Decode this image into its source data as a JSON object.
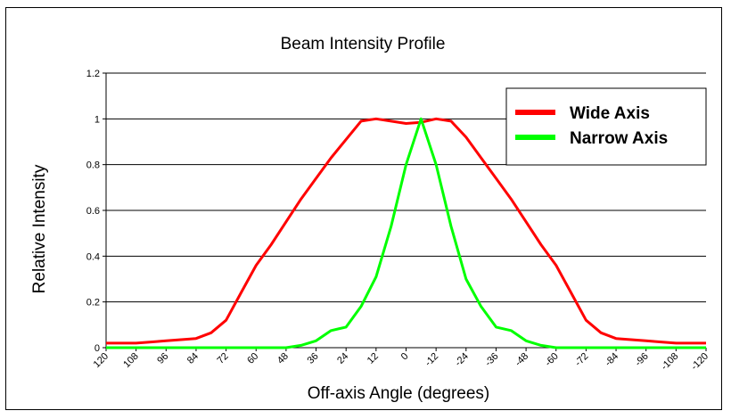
{
  "chart_data": {
    "type": "line",
    "title": "Beam Intensity Profile",
    "xlabel": "Off-axis Angle (degrees)",
    "ylabel": "Relative Intensity",
    "x_tick_labels": [
      "120",
      "108",
      "96",
      "84",
      "72",
      "60",
      "48",
      "36",
      "24",
      "12",
      "0",
      "-12",
      "-24",
      "-36",
      "-48",
      "-60",
      "-72",
      "-84",
      "-96",
      "-108",
      "-120"
    ],
    "y_tick_labels": [
      "0",
      "0.2",
      "0.4",
      "0.6",
      "0.8",
      "1",
      "1.2"
    ],
    "x": [
      120,
      114,
      108,
      102,
      96,
      90,
      84,
      78,
      72,
      66,
      60,
      54,
      48,
      42,
      36,
      30,
      24,
      18,
      12,
      6,
      0,
      -6,
      -12,
      -18,
      -24,
      -30,
      -36,
      -42,
      -48,
      -54,
      -60,
      -66,
      -72,
      -78,
      -84,
      -90,
      -96,
      -102,
      -108,
      -114,
      -120
    ],
    "ylim": [
      0,
      1.2
    ],
    "xlim": [
      120,
      -120
    ],
    "grid": "horizontal",
    "legend_position": "top-right",
    "series": [
      {
        "name": "Wide Axis",
        "color": "#ff0000",
        "values": [
          0.02,
          0.02,
          0.02,
          0.025,
          0.03,
          0.035,
          0.04,
          0.065,
          0.12,
          0.24,
          0.36,
          0.45,
          0.55,
          0.65,
          0.74,
          0.83,
          0.91,
          0.99,
          1.0,
          0.99,
          0.98,
          0.985,
          1.0,
          0.99,
          0.92,
          0.83,
          0.74,
          0.65,
          0.55,
          0.45,
          0.36,
          0.24,
          0.12,
          0.065,
          0.04,
          0.035,
          0.03,
          0.025,
          0.02,
          0.02,
          0.02
        ]
      },
      {
        "name": "Narrow Axis",
        "color": "#00ff00",
        "values": [
          0,
          0,
          0,
          0,
          0,
          0,
          0,
          0,
          0,
          0,
          0,
          0,
          0,
          0.01,
          0.03,
          0.075,
          0.09,
          0.18,
          0.31,
          0.53,
          0.8,
          1.0,
          0.8,
          0.53,
          0.3,
          0.18,
          0.09,
          0.075,
          0.03,
          0.01,
          0,
          0,
          0,
          0,
          0,
          0,
          0,
          0,
          0,
          0,
          0
        ]
      }
    ]
  }
}
